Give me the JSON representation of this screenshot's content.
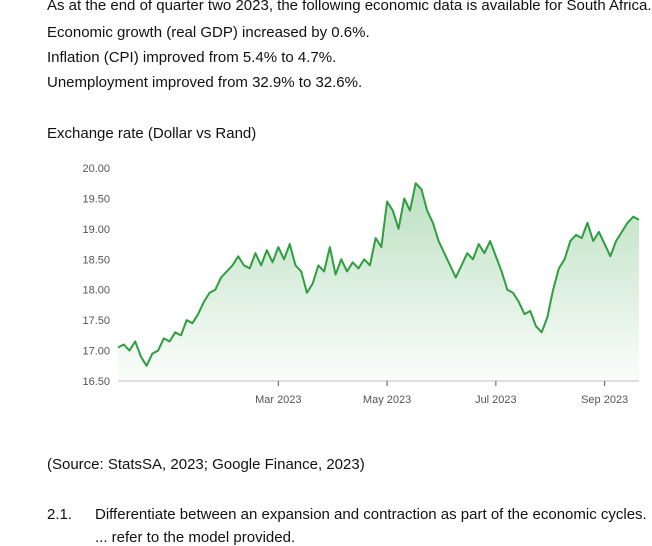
{
  "intro": {
    "line1": "As at the end of quarter two 2023, the following economic data is available for South Africa.",
    "line2": "Economic growth (real GDP) increased by 0.6%.",
    "line3": "Inflation (CPI) improved from 5.4% to 4.7%.",
    "line4": "Unemployment improved from 32.9% to 32.6%."
  },
  "chart_title": "Exchange rate (Dollar vs Rand)",
  "source": "(Source: StatsSA, 2023; Google Finance, 2023)",
  "question": {
    "number": "2.1.",
    "text": "Differentiate between an expansion and contraction as part of the economic cycles.",
    "continuation": "... refer to the model provided."
  },
  "chart_data": {
    "type": "area",
    "title": "Exchange rate (Dollar vs Rand)",
    "xlabel": "",
    "ylabel": "",
    "ylim": [
      16.5,
      20.0
    ],
    "yticks": [
      "20.00",
      "19.50",
      "19.00",
      "18.50",
      "18.00",
      "17.50",
      "17.00",
      "16.50"
    ],
    "ytick_values": [
      20.0,
      19.5,
      19.0,
      18.5,
      18.0,
      17.5,
      17.0,
      16.5
    ],
    "xticks": [
      "Mar 2023",
      "May 2023",
      "Jul 2023",
      "Sep 2023"
    ],
    "xtick_index": [
      28,
      47,
      66,
      85
    ],
    "grid": false,
    "legend": "none",
    "line_color": "#2e9e3e",
    "fill_color": "#2e9e3e",
    "values": [
      17.05,
      17.1,
      17.0,
      17.15,
      16.9,
      16.75,
      16.95,
      17.0,
      17.2,
      17.15,
      17.3,
      17.25,
      17.5,
      17.45,
      17.6,
      17.8,
      17.95,
      18.0,
      18.2,
      18.3,
      18.4,
      18.55,
      18.4,
      18.35,
      18.6,
      18.4,
      18.65,
      18.45,
      18.7,
      18.5,
      18.75,
      18.4,
      18.3,
      17.95,
      18.1,
      18.4,
      18.3,
      18.7,
      18.25,
      18.5,
      18.3,
      18.45,
      18.35,
      18.5,
      18.4,
      18.85,
      18.7,
      19.45,
      19.3,
      19.0,
      19.5,
      19.3,
      19.75,
      19.65,
      19.3,
      19.1,
      18.8,
      18.6,
      18.4,
      18.2,
      18.4,
      18.6,
      18.5,
      18.75,
      18.6,
      18.8,
      18.55,
      18.3,
      18.0,
      17.95,
      17.8,
      17.6,
      17.65,
      17.4,
      17.3,
      17.55,
      18.0,
      18.35,
      18.5,
      18.8,
      18.9,
      18.85,
      19.1,
      18.8,
      18.95,
      18.75,
      18.55,
      18.8,
      18.95,
      19.1,
      19.2,
      19.15
    ]
  }
}
